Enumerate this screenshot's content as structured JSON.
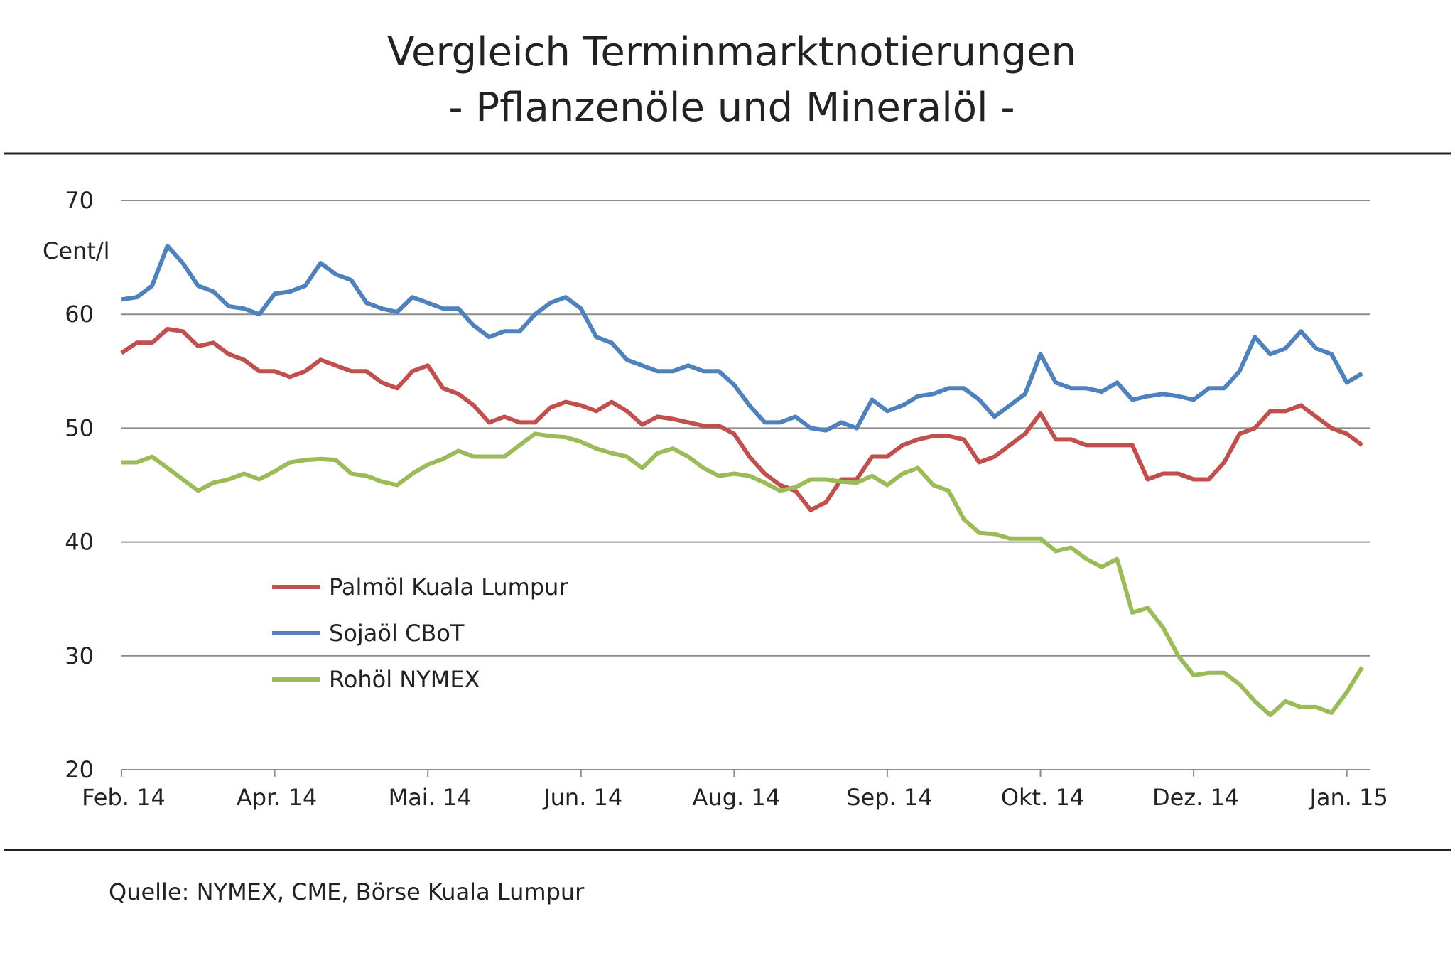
{
  "chart_data": {
    "type": "line",
    "title": "Vergleich Terminmarktnotierungen",
    "subtitle": "- Pflanzenöle  und Mineralöl -",
    "y_label": "Cent/l",
    "source": "Quelle: NYMEX, CME, Börse Kuala  Lumpur",
    "categories": [
      "Feb. 14",
      null,
      null,
      null,
      null,
      null,
      null,
      null,
      null,
      null,
      "Apr. 14",
      null,
      null,
      null,
      null,
      null,
      null,
      null,
      null,
      null,
      "Mai. 14",
      null,
      null,
      null,
      null,
      null,
      null,
      null,
      null,
      null,
      "Jun. 14",
      null,
      null,
      null,
      null,
      null,
      null,
      null,
      null,
      null,
      "Aug. 14",
      null,
      null,
      null,
      null,
      null,
      null,
      null,
      null,
      null,
      "Sep. 14",
      null,
      null,
      null,
      null,
      null,
      null,
      null,
      null,
      null,
      "Okt. 14",
      null,
      null,
      null,
      null,
      null,
      null,
      null,
      null,
      null,
      "Dez. 14",
      null,
      null,
      null,
      null,
      null,
      null,
      null,
      null,
      null,
      "Jan. 15",
      null
    ],
    "ylim": [
      20,
      70
    ],
    "yticks": [
      20,
      30,
      40,
      50,
      60,
      70
    ],
    "grid": true,
    "series": [
      {
        "name": "Palmöl Kuala Lumpur",
        "color": "#c0504d",
        "values": [
          56.6,
          57.5,
          57.5,
          58.7,
          58.5,
          57.2,
          57.5,
          56.5,
          56,
          55,
          55,
          54.5,
          55,
          56,
          55.5,
          55,
          55,
          54,
          53.5,
          55,
          55.5,
          53.5,
          53,
          52,
          50.5,
          51,
          50.5,
          50.5,
          51.8,
          52.3,
          52,
          51.5,
          52.3,
          51.5,
          50.3,
          51,
          50.8,
          50.5,
          50.2,
          50.2,
          49.5,
          47.5,
          46,
          45,
          44.5,
          42.8,
          43.5,
          45.5,
          45.5,
          47.5,
          47.5,
          48.5,
          49,
          49.3,
          49.3,
          49,
          47,
          47.5,
          48.5,
          49.5,
          51.3,
          49,
          49,
          48.5,
          48.5,
          48.5,
          48.5,
          45.5,
          46,
          46,
          45.5,
          45.5,
          47,
          49.5,
          50,
          51.5,
          51.5,
          52,
          51,
          50,
          49.5,
          48.5
        ]
      },
      {
        "name": "Sojaöl CBoT",
        "color": "#4f81bd",
        "values": [
          61.3,
          61.5,
          62.5,
          66,
          64.5,
          62.5,
          62,
          60.7,
          60.5,
          60,
          61.8,
          62,
          62.5,
          64.5,
          63.5,
          63,
          61,
          60.5,
          60.2,
          61.5,
          61,
          60.5,
          60.5,
          59,
          58,
          58.5,
          58.5,
          60,
          61,
          61.5,
          60.5,
          58,
          57.5,
          56,
          55.5,
          55,
          55,
          55.5,
          55,
          55,
          53.8,
          52,
          50.5,
          50.5,
          51,
          50,
          49.8,
          50.5,
          50,
          52.5,
          51.5,
          52,
          52.8,
          53,
          53.5,
          53.5,
          52.5,
          51,
          52,
          53,
          56.5,
          54,
          53.5,
          53.5,
          53.2,
          54,
          52.5,
          52.8,
          53,
          52.8,
          52.5,
          53.5,
          53.5,
          55,
          58,
          56.5,
          57,
          58.5,
          57,
          56.5,
          54,
          54.8
        ]
      },
      {
        "name": "Rohöl NYMEX",
        "color": "#9bbb59",
        "values": [
          47,
          47,
          47.5,
          46.5,
          45.5,
          44.5,
          45.2,
          45.5,
          46,
          45.5,
          46.2,
          47,
          47.2,
          47.3,
          47.2,
          46,
          45.8,
          45.3,
          45,
          46,
          46.8,
          47.3,
          48,
          47.5,
          47.5,
          47.5,
          48.5,
          49.5,
          49.3,
          49.2,
          48.8,
          48.2,
          47.8,
          47.5,
          46.5,
          47.8,
          48.2,
          47.5,
          46.5,
          45.8,
          46,
          45.8,
          45.2,
          44.5,
          44.8,
          45.5,
          45.5,
          45.3,
          45.2,
          45.8,
          45,
          46,
          46.5,
          45,
          44.5,
          42,
          40.8,
          40.7,
          40.3,
          40.3,
          40.3,
          39.2,
          39.5,
          38.5,
          37.8,
          38.5,
          33.8,
          34.2,
          32.5,
          30,
          28.3,
          28.5,
          28.5,
          27.5,
          26,
          24.8,
          26,
          25.5,
          25.5,
          25,
          26.8,
          29
        ]
      }
    ]
  }
}
